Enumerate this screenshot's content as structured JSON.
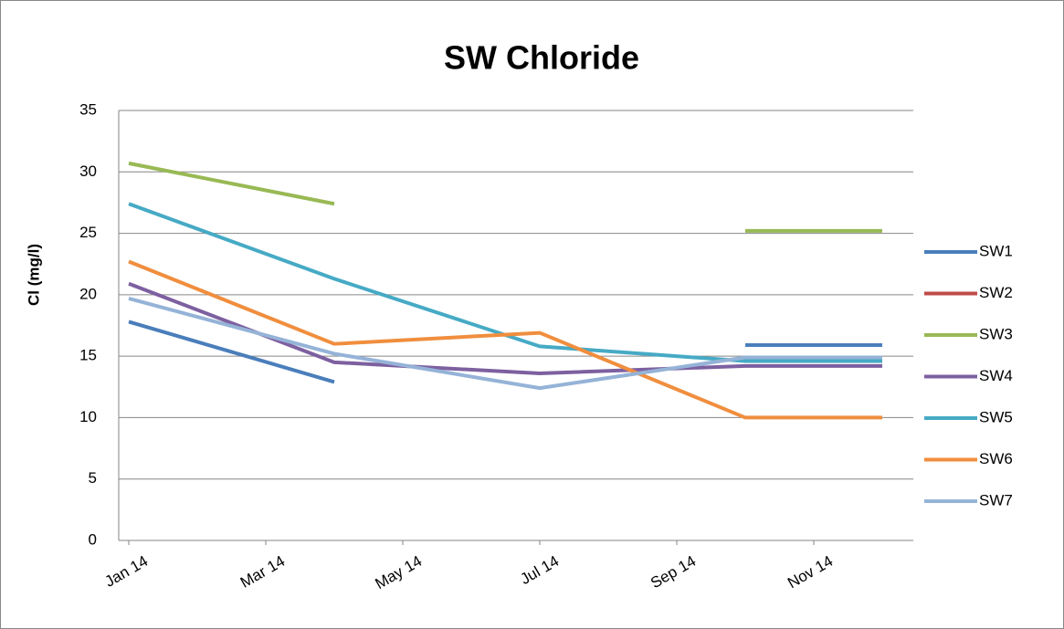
{
  "chart_data": {
    "type": "line",
    "title": "SW Chloride",
    "y_label": "Cl (mg/l)",
    "x": [
      "2014-01",
      "2014-04",
      "2014-07",
      "2014-10",
      "2014-12"
    ],
    "xlim": [
      "2014-01",
      "2014-12"
    ],
    "xticks": [
      {
        "value": "2014-01",
        "label": "Jan 14"
      },
      {
        "value": "2014-03",
        "label": "Mar 14"
      },
      {
        "value": "2014-05",
        "label": "May 14"
      },
      {
        "value": "2014-07",
        "label": "Jul 14"
      },
      {
        "value": "2014-09",
        "label": "Sep 14"
      },
      {
        "value": "2014-11",
        "label": "Nov 14"
      }
    ],
    "ylim": [
      0,
      35
    ],
    "yticks": [
      0,
      5,
      10,
      15,
      20,
      25,
      30,
      35
    ],
    "grid": true,
    "legend": "right",
    "series": [
      {
        "name": "SW1",
        "color": "#4a7ebb",
        "values": [
          17.8,
          12.9,
          null,
          15.9,
          15.9
        ]
      },
      {
        "name": "SW2",
        "color": "#be4b48",
        "values": [
          null,
          null,
          null,
          null,
          null
        ]
      },
      {
        "name": "SW3",
        "color": "#98b954",
        "values": [
          30.7,
          27.4,
          null,
          25.2,
          25.2
        ]
      },
      {
        "name": "SW4",
        "color": "#7d60a0",
        "values": [
          20.9,
          14.5,
          13.6,
          14.2,
          14.2
        ]
      },
      {
        "name": "SW5",
        "color": "#46aac5",
        "values": [
          27.4,
          21.3,
          15.8,
          14.6,
          14.6
        ]
      },
      {
        "name": "SW6",
        "color": "#f08e3e",
        "values": [
          22.7,
          16.0,
          16.9,
          10.0,
          10.0
        ]
      },
      {
        "name": "SW7",
        "color": "#95b3d7",
        "values": [
          19.7,
          15.2,
          12.4,
          14.9,
          14.9
        ]
      }
    ]
  }
}
